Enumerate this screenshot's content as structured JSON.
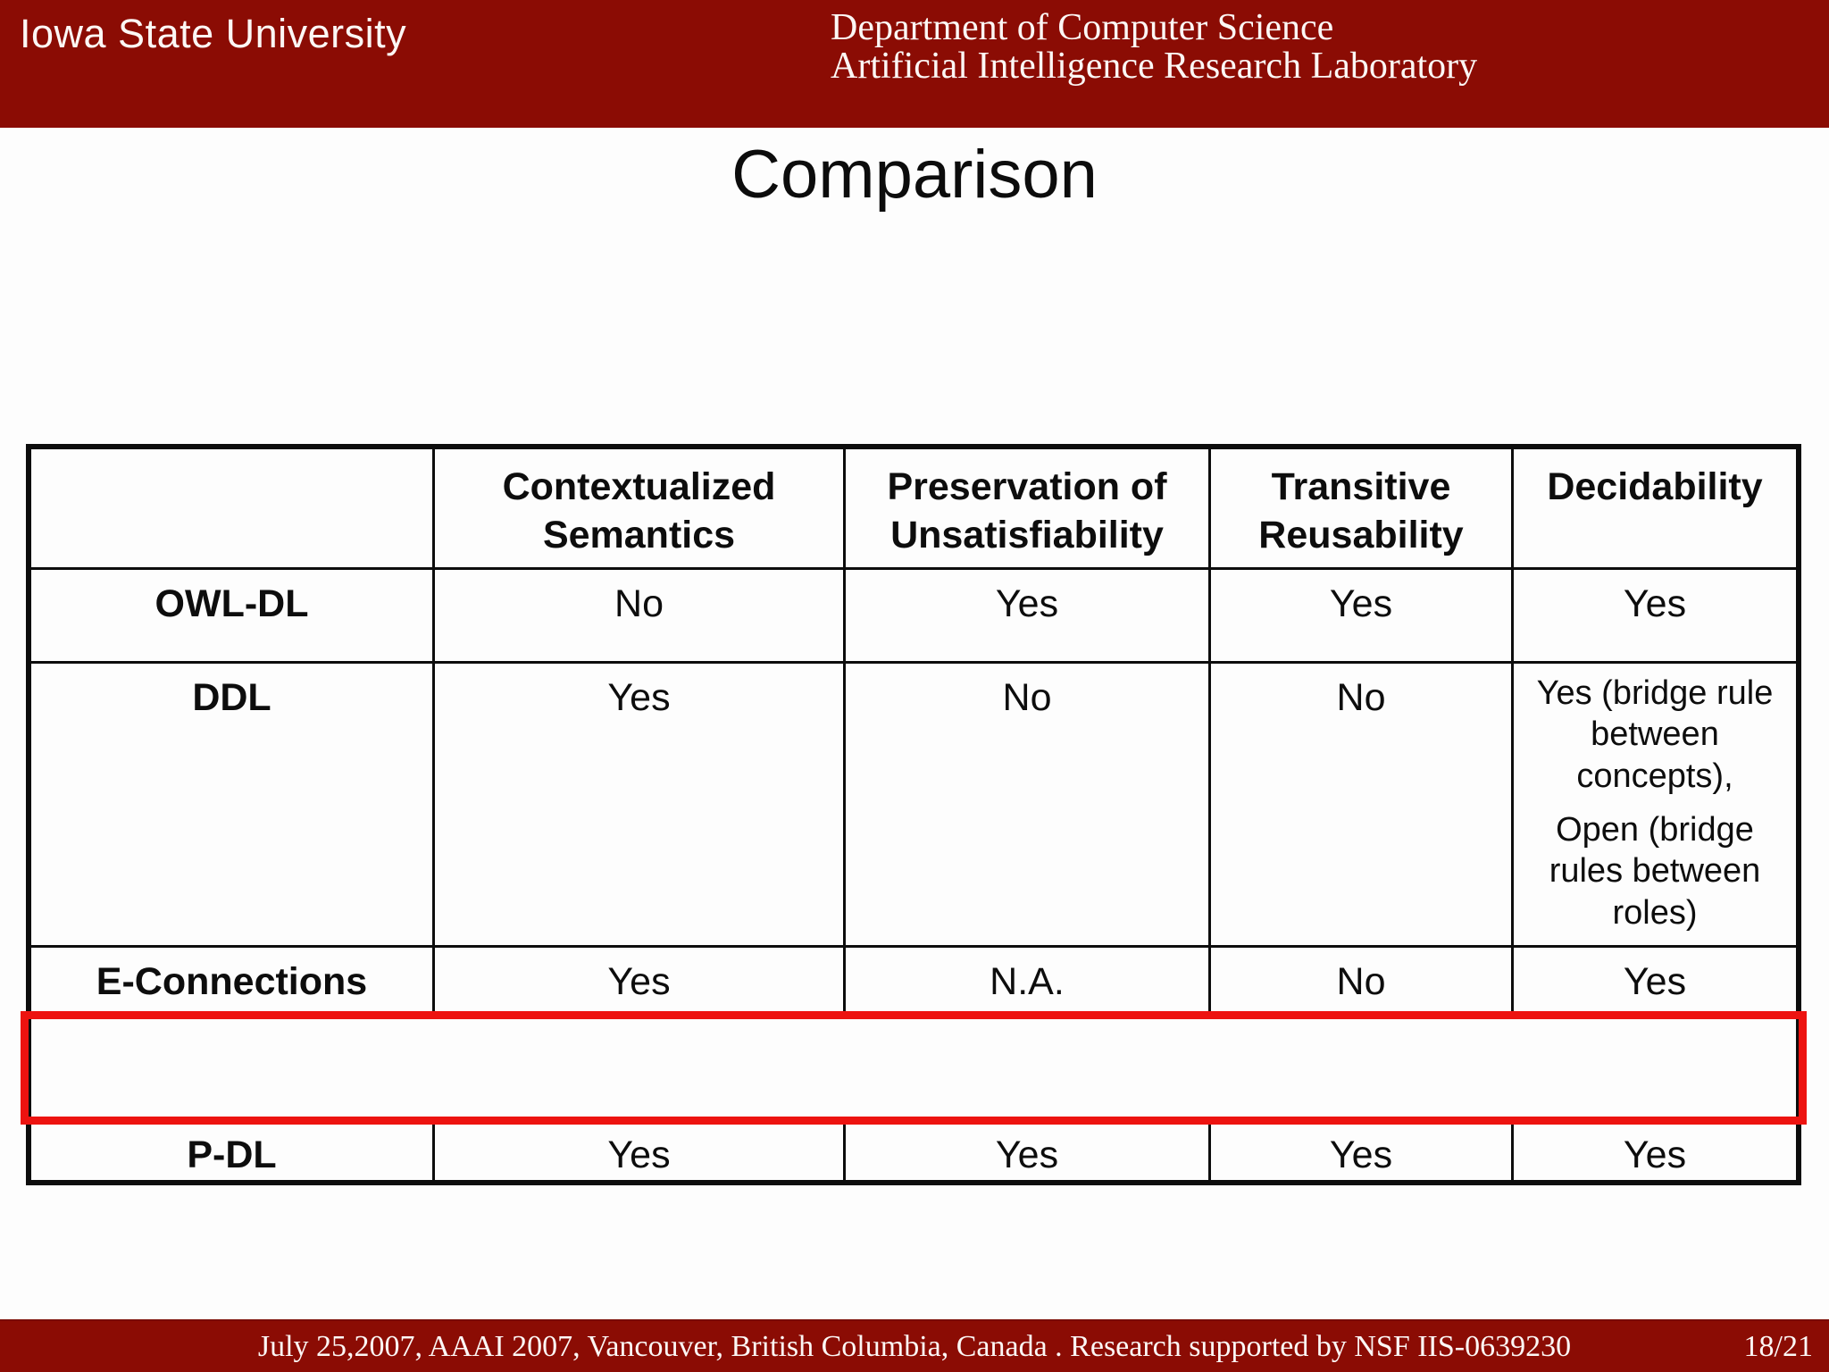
{
  "header": {
    "university": "Iowa State University",
    "department_line1": "Department of Computer Science",
    "department_line2": "Artificial Intelligence Research Laboratory"
  },
  "title": "Comparison",
  "table": {
    "columns": [
      "",
      "Contextualized Semantics",
      "Preservation of Unsatisfiability",
      "Transitive Reusability",
      "Decidability"
    ],
    "rows": [
      {
        "label": "OWL-DL",
        "cells": [
          "No",
          "Yes",
          "Yes",
          "Yes"
        ],
        "highlighted": false
      },
      {
        "label": "DDL",
        "cells": [
          "Yes",
          "No",
          "No",
          {
            "p1": "Yes (bridge rule between concepts),",
            "p2": "Open (bridge rules between roles)"
          }
        ],
        "highlighted": false
      },
      {
        "label": "E-Connections",
        "cells": [
          "Yes",
          "N.A.",
          "No",
          "Yes"
        ],
        "highlighted": false
      },
      {
        "label": "P-DL",
        "cells": [
          "Yes",
          "Yes",
          "Yes",
          "Yes"
        ],
        "highlighted": true
      }
    ]
  },
  "footer": {
    "text": "July 25,2007,  AAAI 2007, Vancouver, British Columbia, Canada . Research supported by NSF IIS-0639230",
    "page": "18/21"
  },
  "colors": {
    "maroon_band": "#8b0c04",
    "highlight_red": "#ed1310",
    "table_border": "#0d0d0d",
    "background": "#fdfdfd",
    "band_text": "#fcf7f5"
  }
}
